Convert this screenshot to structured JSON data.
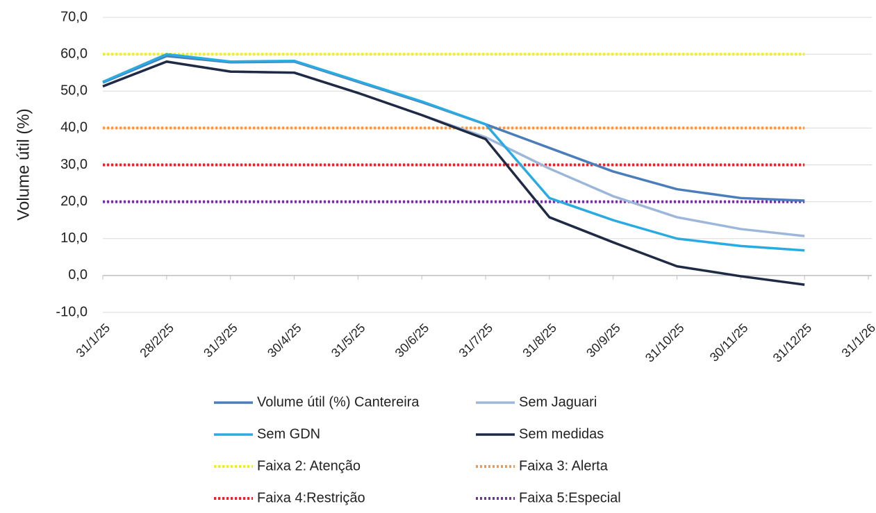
{
  "chart_data": {
    "type": "line",
    "y_label": "Volume útil (%)",
    "categories": [
      "31/1/25",
      "28/2/25",
      "31/3/25",
      "30/4/25",
      "31/5/25",
      "30/6/25",
      "31/7/25",
      "31/8/25",
      "30/9/25",
      "31/10/25",
      "30/11/25",
      "31/12/25",
      "31/1/26"
    ],
    "ylim": [
      -10,
      70
    ],
    "yticks": [
      {
        "value": -10,
        "label": "-10,0"
      },
      {
        "value": 0,
        "label": "0,0"
      },
      {
        "value": 10,
        "label": "10,0"
      },
      {
        "value": 20,
        "label": "20,0"
      },
      {
        "value": 30,
        "label": "30,0"
      },
      {
        "value": 40,
        "label": "40,0"
      },
      {
        "value": 50,
        "label": "50,0"
      },
      {
        "value": 60,
        "label": "60,0"
      },
      {
        "value": 70,
        "label": "70,0"
      }
    ],
    "grid": true,
    "series": [
      {
        "name": "Volume útil (%) Cantereira",
        "color": "#4a7ebb",
        "dotted": false,
        "values": [
          52.3,
          59.5,
          57.8,
          58,
          52.5,
          47,
          41,
          34.6,
          28.2,
          23.4,
          21,
          20.3,
          null
        ]
      },
      {
        "name": "Sem Jaguari",
        "color": "#9db7da",
        "dotted": false,
        "values": [
          51.3,
          58,
          55.3,
          55,
          49.5,
          43.5,
          37.5,
          29,
          21.5,
          15.8,
          12.6,
          10.7,
          null
        ]
      },
      {
        "name": "Sem GDN",
        "color": "#29abe2",
        "dotted": false,
        "values": [
          52.5,
          60,
          58,
          58.2,
          52.7,
          47.2,
          41,
          21,
          15,
          10,
          8,
          6.8,
          null
        ]
      },
      {
        "name": "Sem medidas",
        "color": "#1f2a44",
        "dotted": false,
        "values": [
          51.3,
          58,
          55.3,
          55,
          49.5,
          43.5,
          37,
          15.8,
          9,
          2.5,
          -0.2,
          -2.5,
          null
        ]
      },
      {
        "name": "Faixa 2: Atenção",
        "color": "#ecec3a",
        "dotted": true,
        "values": [
          60,
          60,
          60,
          60,
          60,
          60,
          60,
          60,
          60,
          60,
          60,
          60,
          null
        ]
      },
      {
        "name": "Faixa 3: Alerta",
        "color": "#f79646",
        "dotted": true,
        "values": [
          40,
          40,
          40,
          40,
          40,
          40,
          40,
          40,
          40,
          40,
          40,
          40,
          null
        ]
      },
      {
        "name": "Faixa 4:Restrição",
        "color": "#e3262b",
        "dotted": true,
        "values": [
          30,
          30,
          30,
          30,
          30,
          30,
          30,
          30,
          30,
          30,
          30,
          30,
          null
        ]
      },
      {
        "name": "Faixa 5:Especial",
        "color": "#7030a0",
        "dotted": true,
        "values": [
          20,
          20,
          20,
          20,
          20,
          20,
          20,
          20,
          20,
          20,
          20,
          20,
          null
        ]
      }
    ]
  }
}
